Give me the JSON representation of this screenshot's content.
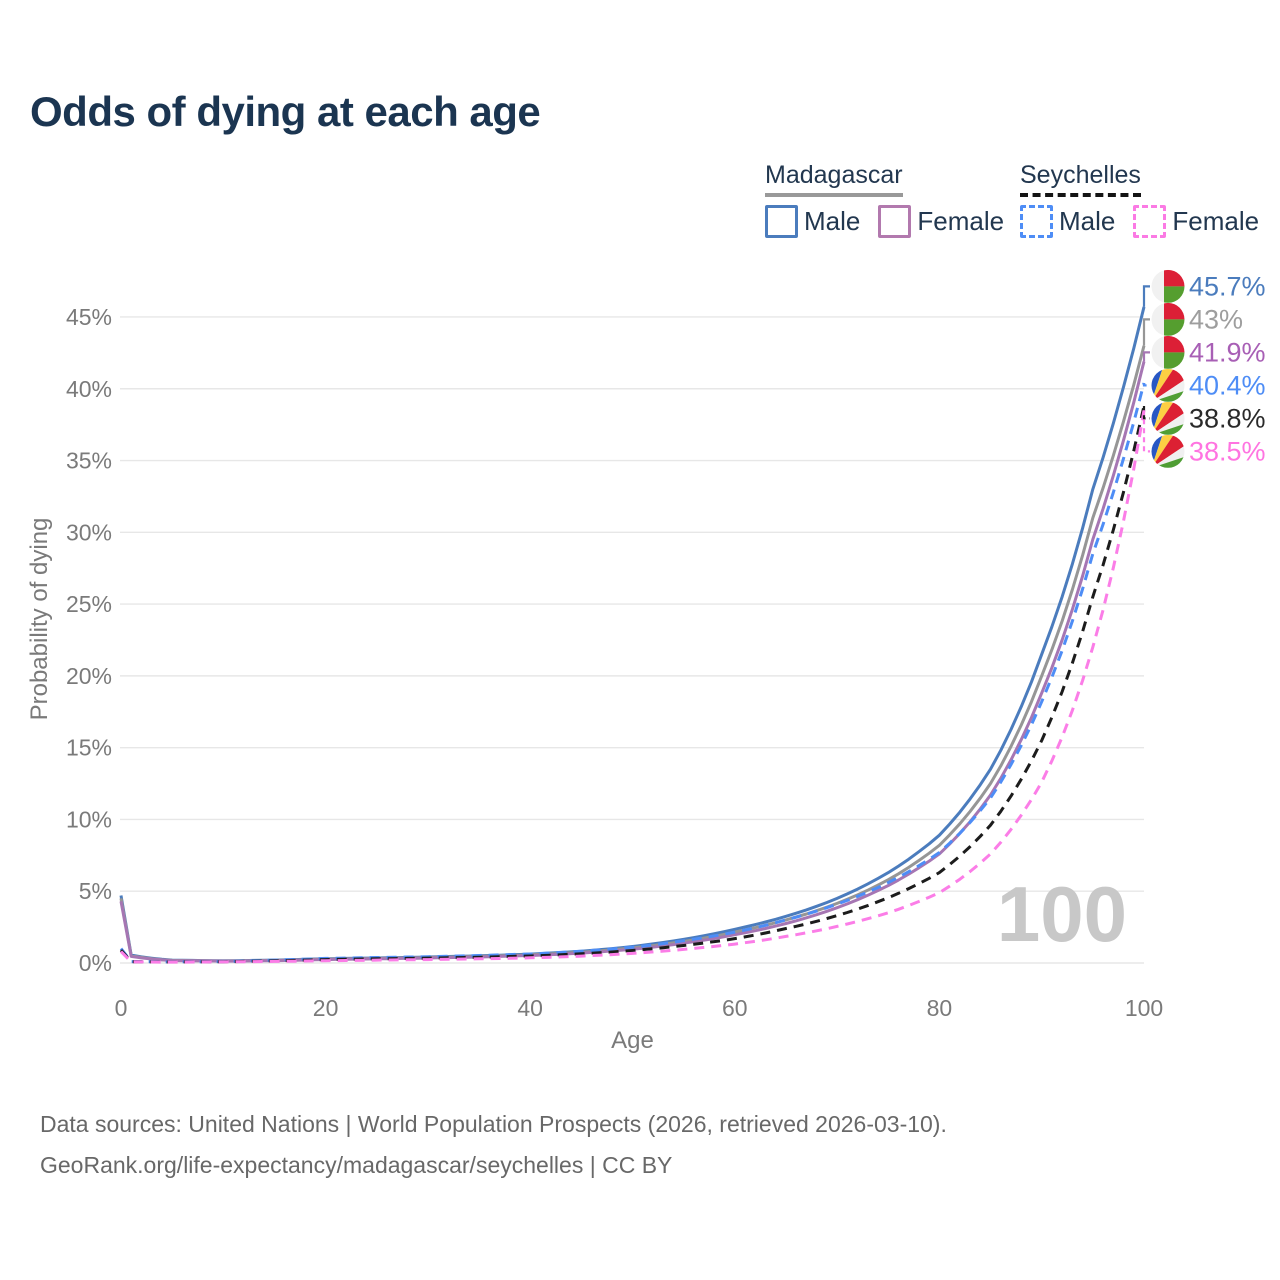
{
  "title": "Odds of dying at each age",
  "legend": {
    "groups": [
      {
        "country": "Madagascar",
        "line_style": "solid",
        "rule_color": "#999999",
        "items": [
          {
            "label": "Male",
            "color": "#4b7cbd"
          },
          {
            "label": "Female",
            "color": "#b279ae"
          }
        ]
      },
      {
        "country": "Seychelles",
        "line_style": "dashed",
        "rule_color": "#141414",
        "items": [
          {
            "label": "Male",
            "color": "#4e8df6"
          },
          {
            "label": "Female",
            "color": "#fb7ae4"
          }
        ]
      }
    ]
  },
  "chart_data": {
    "type": "line",
    "title": "Odds of dying at each age",
    "xlabel": "Age",
    "ylabel": "Probability of dying",
    "x_ticks": [
      0,
      20,
      40,
      60,
      80,
      100
    ],
    "y_ticks_pct": [
      0,
      5,
      10,
      15,
      20,
      25,
      30,
      35,
      40,
      45
    ],
    "xlim": [
      0,
      100
    ],
    "ylim_pct": [
      0,
      47.5
    ],
    "grid": "horizontal",
    "legend_position": "top-right",
    "watermark": "100",
    "ages": [
      0,
      1,
      5,
      10,
      15,
      20,
      25,
      30,
      35,
      40,
      45,
      50,
      55,
      60,
      65,
      70,
      75,
      80,
      85,
      90,
      95,
      100
    ],
    "series": [
      {
        "id": "madagascar-male",
        "country": "Madagascar",
        "group": "Male",
        "line_color": "#4b7cbd",
        "label_color": "#4b7cbd",
        "dashed": false,
        "flag": "madagascar",
        "end_label": "45.7%",
        "end_value_pct": 45.7,
        "values_pct": [
          4.7,
          0.55,
          0.2,
          0.15,
          0.2,
          0.3,
          0.35,
          0.42,
          0.5,
          0.62,
          0.82,
          1.15,
          1.65,
          2.35,
          3.25,
          4.5,
          6.3,
          8.9,
          13.5,
          21.5,
          33,
          45.7
        ]
      },
      {
        "id": "madagascar-average",
        "country": "Madagascar",
        "group": "",
        "line_color": "#969696",
        "label_color": "#9e9e9e",
        "dashed": false,
        "flag": "madagascar",
        "end_label": "43%",
        "end_value_pct": 43,
        "values_pct": [
          4.5,
          0.5,
          0.18,
          0.14,
          0.18,
          0.27,
          0.32,
          0.38,
          0.46,
          0.57,
          0.75,
          1.05,
          1.5,
          2.15,
          3,
          4.15,
          5.8,
          8.2,
          12.5,
          20,
          31,
          43
        ]
      },
      {
        "id": "madagascar-female",
        "country": "Madagascar",
        "group": "Female",
        "line_color": "#a676b3",
        "label_color": "#a85fb5",
        "dashed": false,
        "flag": "madagascar",
        "end_label": "41.9%",
        "end_value_pct": 41.9,
        "values_pct": [
          4.3,
          0.46,
          0.17,
          0.13,
          0.16,
          0.24,
          0.29,
          0.35,
          0.42,
          0.52,
          0.69,
          0.96,
          1.38,
          1.97,
          2.75,
          3.85,
          5.4,
          7.6,
          11.7,
          18.8,
          29.5,
          41.9
        ]
      },
      {
        "id": "seychelles-male",
        "country": "Seychelles",
        "group": "Male",
        "line_color": "#4e8df6",
        "label_color": "#4e8df6",
        "dashed": true,
        "flag": "seychelles",
        "end_label": "40.4%",
        "end_value_pct": 40.4,
        "values_pct": [
          1,
          0.1,
          0.08,
          0.1,
          0.2,
          0.32,
          0.38,
          0.44,
          0.52,
          0.63,
          0.82,
          1.1,
          1.55,
          2.15,
          3,
          4.1,
          5.6,
          7.7,
          11.5,
          18.2,
          28.5,
          40.4
        ]
      },
      {
        "id": "seychelles-average",
        "country": "Seychelles",
        "group": "",
        "line_color": "#1c1c1c",
        "label_color": "#2a2a2a",
        "dashed": true,
        "flag": "seychelles",
        "end_label": "38.8%",
        "end_value_pct": 38.8,
        "values_pct": [
          0.9,
          0.09,
          0.07,
          0.09,
          0.15,
          0.24,
          0.29,
          0.34,
          0.4,
          0.49,
          0.64,
          0.87,
          1.22,
          1.7,
          2.4,
          3.3,
          4.55,
          6.3,
          9.6,
          15.5,
          25.5,
          38.8
        ]
      },
      {
        "id": "seychelles-female",
        "country": "Seychelles",
        "group": "Female",
        "line_color": "#fb7de7",
        "label_color": "#ff74e1",
        "dashed": true,
        "flag": "seychelles",
        "end_label": "38.5%",
        "end_value_pct": 38.5,
        "values_pct": [
          0.8,
          0.08,
          0.06,
          0.08,
          0.11,
          0.16,
          0.2,
          0.24,
          0.29,
          0.36,
          0.48,
          0.67,
          0.95,
          1.32,
          1.85,
          2.55,
          3.5,
          4.9,
          7.6,
          12.6,
          22,
          38.5
        ]
      }
    ],
    "flag_colors": {
      "madagascar": {
        "white": "#f1f1f1",
        "red": "#dc1f36",
        "green": "#559e2f"
      },
      "seychelles": {
        "blue": "#2757c4",
        "yellow": "#fccf43",
        "red": "#dc2033",
        "white": "#f0f0f0",
        "green": "#4f9e34"
      }
    }
  },
  "style_colors": {
    "title": "#1b3551",
    "axis_text": "#7a7a7a",
    "gridline": "#e7e7e7",
    "watermark": "#c8c8c8",
    "footer": "#686868"
  },
  "footer": {
    "line1": "Data sources: United Nations | World Population Prospects (2026, retrieved 2026-03-10).",
    "line2": "GeoRank.org/life-expectancy/madagascar/seychelles | CC BY"
  }
}
